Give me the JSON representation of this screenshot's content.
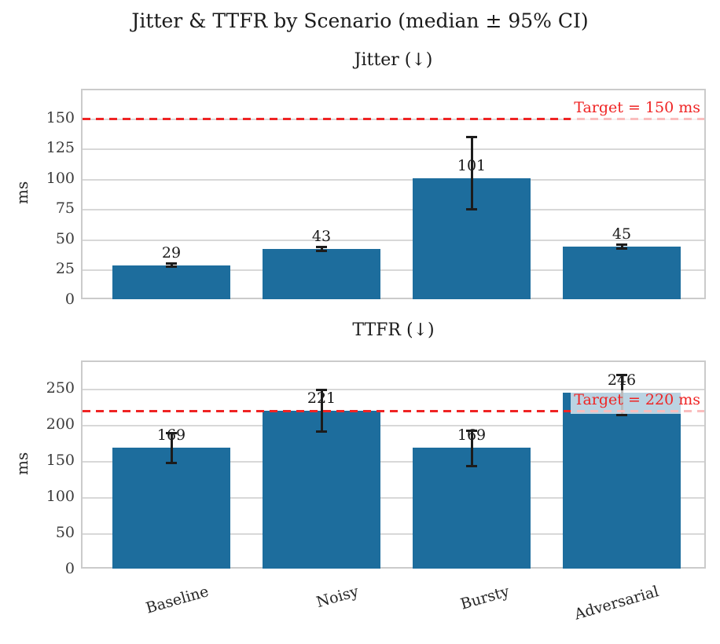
{
  "figure": {
    "title": "Jitter & TTFR by Scenario (median ± 95% CI)",
    "background": "#ffffff"
  },
  "colors": {
    "bar": "#1d6d9d",
    "target": "#ef2424",
    "grid": "#d8d8d8",
    "spine": "#cbcbcb",
    "error_bar": "#1c1c1c",
    "text": "#262626"
  },
  "chart_data": [
    {
      "type": "bar",
      "title": "Jitter (↓)",
      "ylabel": "ms",
      "categories": [
        "Baseline",
        "Noisy",
        "Bursty",
        "Adversarial"
      ],
      "values": [
        29,
        43,
        101,
        45
      ],
      "ci_low": [
        28,
        41,
        75,
        43
      ],
      "ci_high": [
        31,
        45,
        136,
        47
      ],
      "yticks": [
        0,
        25,
        50,
        75,
        100,
        125,
        150
      ],
      "ylim": [
        0,
        174
      ],
      "grid": true,
      "target": {
        "value": 150,
        "label": "Target = 150 ms"
      },
      "show_x_tick_labels": false
    },
    {
      "type": "bar",
      "title": "TTFR (↓)",
      "ylabel": "ms",
      "categories": [
        "Baseline",
        "Noisy",
        "Bursty",
        "Adversarial"
      ],
      "values": [
        169,
        221,
        169,
        246
      ],
      "ci_low": [
        148,
        191,
        144,
        214
      ],
      "ci_high": [
        190,
        250,
        193,
        271
      ],
      "yticks": [
        0,
        50,
        100,
        150,
        200,
        250
      ],
      "ylim": [
        0,
        288
      ],
      "grid": true,
      "target": {
        "value": 220,
        "label": "Target = 220 ms"
      },
      "show_x_tick_labels": true
    }
  ]
}
